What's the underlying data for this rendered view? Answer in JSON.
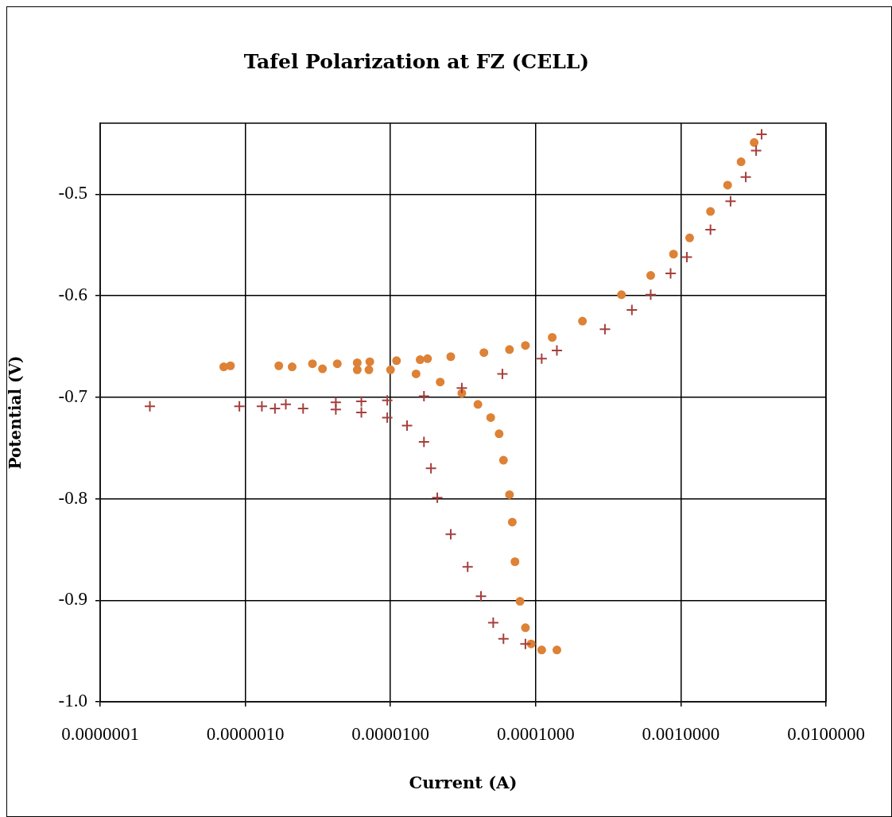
{
  "chart_data": {
    "type": "scatter",
    "title": "Tafel Polarization at FZ (CELL)",
    "xlabel": "Current (A)",
    "ylabel": "Potential (V)",
    "log": "x",
    "grid": true,
    "legend": false,
    "xlim": [
      1e-07,
      0.01
    ],
    "xticks": [
      {
        "value": 1e-07,
        "label": "0.0000001"
      },
      {
        "value": 1e-06,
        "label": "0.0000010"
      },
      {
        "value": 1e-05,
        "label": "0.0000100"
      },
      {
        "value": 0.0001,
        "label": "0.0001000"
      },
      {
        "value": 0.001,
        "label": "0.0010000"
      },
      {
        "value": 0.01,
        "label": "0.0100000"
      }
    ],
    "ylim": [
      -1.0,
      -0.43
    ],
    "yticks": [
      {
        "value": -1.0,
        "label": "-1.0"
      },
      -0.9,
      -0.8,
      -0.7,
      -0.6,
      -0.5
    ],
    "series": [
      {
        "color": "#a5403d",
        "marker": "cross",
        "x": [
          8.5e-05,
          6e-05,
          5.1e-05,
          4.2e-05,
          3.4e-05,
          2.6e-05,
          2.1e-05,
          1.9e-05,
          1.7e-05,
          1.3e-05,
          9.5e-06,
          6.3e-06,
          4.2e-06,
          2.5e-06,
          1.6e-06,
          1.3e-06,
          9.1e-07,
          2.2e-07,
          1.9e-06,
          4.2e-06,
          6.3e-06,
          9.5e-06,
          1.7e-05,
          3.1e-05,
          5.9e-05,
          0.00011,
          0.00014,
          0.0003,
          0.00046,
          0.00062,
          0.00085,
          0.0011,
          0.0016,
          0.0022,
          0.0028,
          0.0033,
          0.0036
        ],
        "values": [
          -0.943,
          -0.938,
          -0.922,
          -0.896,
          -0.867,
          -0.835,
          -0.799,
          -0.77,
          -0.744,
          -0.728,
          -0.72,
          -0.715,
          -0.712,
          -0.711,
          -0.711,
          -0.709,
          -0.709,
          -0.709,
          -0.707,
          -0.705,
          -0.704,
          -0.703,
          -0.699,
          -0.691,
          -0.677,
          -0.662,
          -0.654,
          -0.633,
          -0.614,
          -0.599,
          -0.578,
          -0.562,
          -0.535,
          -0.507,
          -0.483,
          -0.457,
          -0.441
        ]
      },
      {
        "color": "#dd8236",
        "marker": "circle",
        "x": [
          0.00014,
          0.00011,
          9.3e-05,
          8.5e-05,
          7.8e-05,
          7.2e-05,
          6.9e-05,
          6.6e-05,
          6e-05,
          5.6e-05,
          4.9e-05,
          4e-05,
          3.1e-05,
          2.2e-05,
          1.5e-05,
          1e-05,
          7.1e-06,
          5.9e-06,
          7.1e-07,
          7.9e-07,
          1.7e-06,
          2.1e-06,
          2.9e-06,
          3.4e-06,
          4.3e-06,
          5.9e-06,
          7.2e-06,
          1.1e-05,
          1.6e-05,
          1.8e-05,
          2.6e-05,
          4.4e-05,
          6.6e-05,
          8.5e-05,
          0.00013,
          0.00021,
          0.00039,
          0.00062,
          0.00089,
          0.00115,
          0.0016,
          0.0021,
          0.0026,
          0.0032
        ],
        "values": [
          -0.949,
          -0.949,
          -0.943,
          -0.927,
          -0.901,
          -0.862,
          -0.823,
          -0.796,
          -0.762,
          -0.736,
          -0.72,
          -0.707,
          -0.696,
          -0.685,
          -0.677,
          -0.673,
          -0.673,
          -0.673,
          -0.67,
          -0.669,
          -0.669,
          -0.67,
          -0.667,
          -0.672,
          -0.667,
          -0.666,
          -0.665,
          -0.664,
          -0.663,
          -0.662,
          -0.66,
          -0.656,
          -0.653,
          -0.649,
          -0.641,
          -0.625,
          -0.599,
          -0.58,
          -0.559,
          -0.543,
          -0.517,
          -0.491,
          -0.468,
          -0.449
        ]
      }
    ]
  }
}
